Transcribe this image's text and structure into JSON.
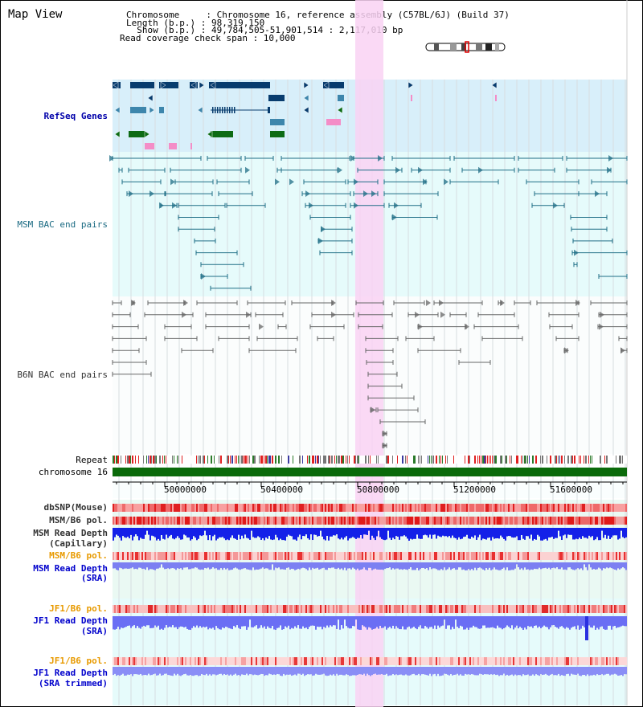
{
  "page": {
    "title": "Map View",
    "info": {
      "chromosome_label": "Chromosome     : Chromosome 16, reference assembly (C57BL/6J) (Build 37)",
      "length_label": "Length (b.p.) : 98,319,150",
      "show_label": "  Show (b.p.) : 49,784,505-51,901,514 : 2,117,010 bp",
      "coverage_label": "Read coverage check span : 10,000"
    }
  },
  "tracks": {
    "refseq_genes": "RefSeq Genes",
    "msm_bac": "MSM BAC end pairs",
    "b6n_bac": "B6N BAC end pairs",
    "repeat": "Repeat",
    "chromosome": "chromosome 16",
    "dbsnp": "dbSNP(Mouse)",
    "msm_b6_pol_1": "MSM/B6 pol.",
    "msm_read_depth_cap_1": "MSM Read Depth",
    "msm_read_depth_cap_2": "(Capillary)",
    "msm_b6_pol_2": "MSM/B6 pol.",
    "msm_read_depth_sra_1": "MSM Read Depth",
    "msm_read_depth_sra_2": "(SRA)",
    "jf1_b6_pol_1": "JF1/B6 pol.",
    "jf1_read_depth_sra_1": "JF1 Read Depth",
    "jf1_read_depth_sra_2": "(SRA)",
    "jf1_b6_pol_2": "JF1/B6 pol.",
    "jf1_read_depth_trim_1": "JF1 Read Depth",
    "jf1_read_depth_trim_2": "(SRA trimmed)"
  },
  "axis": {
    "ticks": [
      "50000000",
      "50400000",
      "50800000",
      "51200000",
      "51600000"
    ]
  },
  "colors": {
    "highlight": "#f9d2f3",
    "refseq_bg": "#d8effa",
    "bac_bg": "#e6fbfb",
    "read_bg": "#eaf9f3",
    "chromosome_bar": "#0a6a0a",
    "gene_navy": "#083c6e",
    "gene_green": "#0d6b14",
    "gene_steel": "#3e86ac",
    "gene_pink": "#f48dc7",
    "msm_line": "#1f6e86",
    "b6n_line": "#666666",
    "capillary_blue": "#1020e8",
    "sra_blue": "#6a6ef4"
  },
  "icons": {
    "ideogram": "chromosome-ideogram-icon",
    "bac_end": "triangle-arrow-icon"
  }
}
